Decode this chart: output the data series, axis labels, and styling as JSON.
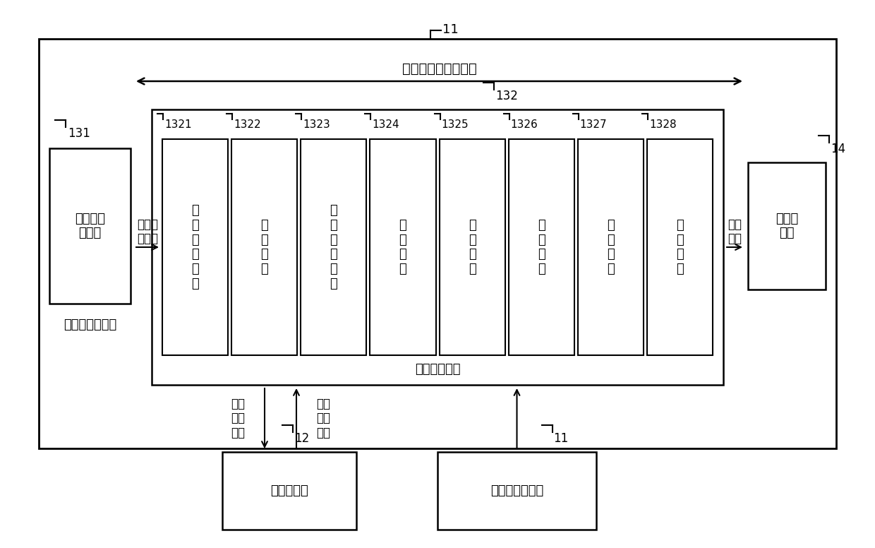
{
  "bg_color": "#ffffff",
  "title_label": "读写片外存储器数据",
  "outer_box_label": "11",
  "inner_controller_label": "片内安全控制器",
  "mem_interface_label": "存储器接\n口模块",
  "mem_interface_id": "131",
  "addr_scramble_module_label": "地址加扰模块",
  "addr_scramble_id": "132",
  "ext_mem_label": "片外存\n储器",
  "ext_mem_id": "14",
  "unscrambled_addr_label": "未经加\n扰地址",
  "scrambled_addr_label": "加扰\n地址",
  "sub_units": [
    {
      "id": "1321",
      "label": "第\n一\n读\n取\n单\n元"
    },
    {
      "id": "1322",
      "label": "写\n入\n单\n元"
    },
    {
      "id": "1323",
      "label": "第\n二\n读\n取\n单\n元"
    },
    {
      "id": "1324",
      "label": "算\n法\n单\n元"
    },
    {
      "id": "1325",
      "label": "发\n送\n单\n元"
    },
    {
      "id": "1326",
      "label": "判\n断\n单\n元"
    },
    {
      "id": "1327",
      "label": "选\n择\n单\n元"
    },
    {
      "id": "1328",
      "label": "寄\n存\n单\n元"
    }
  ],
  "key_store_label": "密钥存储器",
  "key_store_id": "12",
  "rng_label": "真随机数发生器",
  "rng_id": "11",
  "write_key_label": "写入\n随机\n密钥",
  "read_key_label": "读取\n随机\n密钥"
}
